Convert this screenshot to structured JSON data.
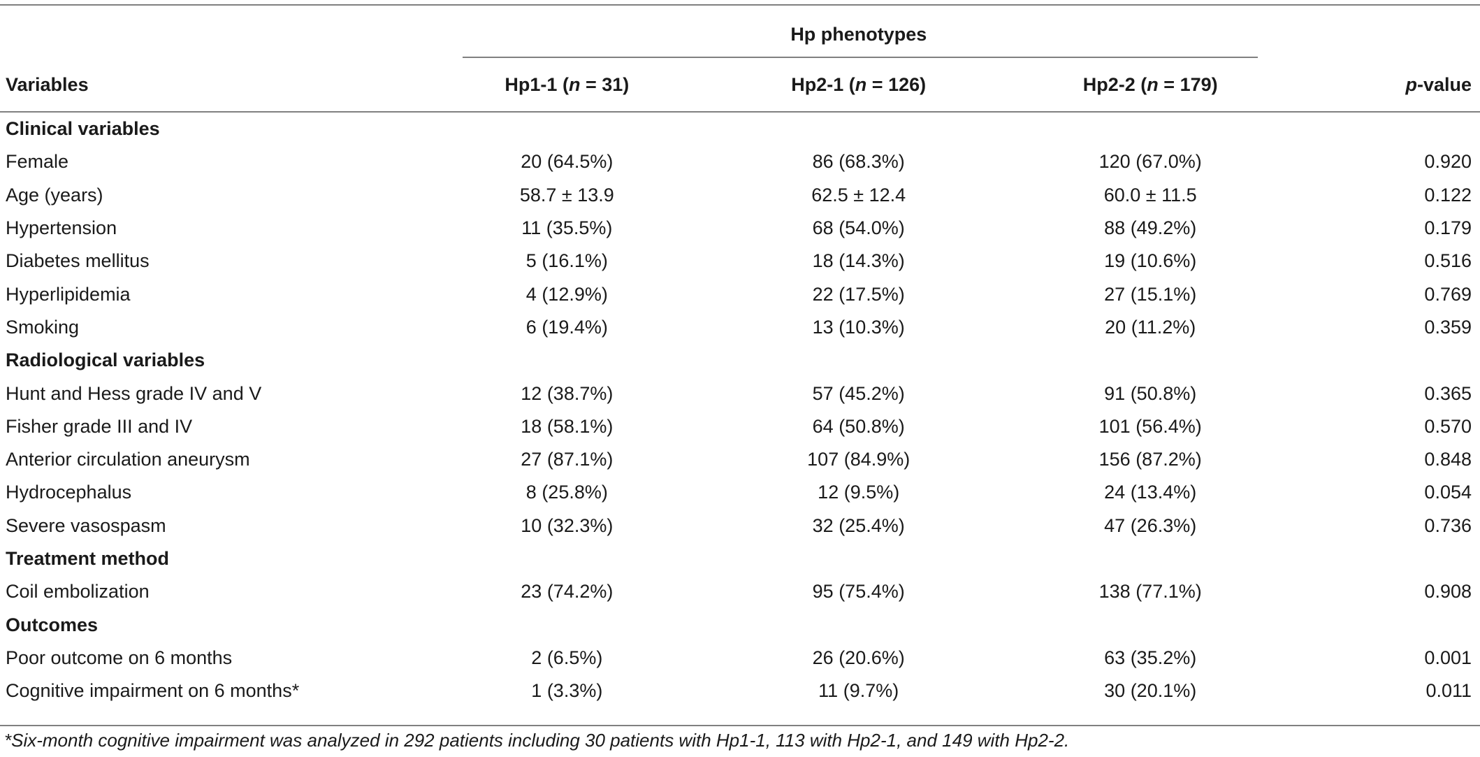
{
  "header": {
    "group_title": "Hp phenotypes",
    "variables_label": "Variables",
    "columns": [
      {
        "prefix": "Hp1-1 (",
        "n": "n",
        "suffix": " = 31)"
      },
      {
        "prefix": "Hp2-1 (",
        "n": "n",
        "suffix": " = 126)"
      },
      {
        "prefix": "Hp2-2 (",
        "n": "n",
        "suffix": " = 179)"
      }
    ],
    "pvalue_italic": "p",
    "pvalue_rest": "-value"
  },
  "rows": [
    {
      "type": "section",
      "label": "Clinical variables"
    },
    {
      "type": "data",
      "label": "Female",
      "hp11": "20 (64.5%)",
      "hp21": "86 (68.3%)",
      "hp22": "120 (67.0%)",
      "p": "0.920"
    },
    {
      "type": "data",
      "label": "Age (years)",
      "hp11": "58.7 ± 13.9",
      "hp21": "62.5 ± 12.4",
      "hp22": "60.0 ± 11.5",
      "p": "0.122"
    },
    {
      "type": "data",
      "label": "Hypertension",
      "hp11": "11 (35.5%)",
      "hp21": "68 (54.0%)",
      "hp22": "88 (49.2%)",
      "p": "0.179"
    },
    {
      "type": "data",
      "label": "Diabetes mellitus",
      "hp11": "5 (16.1%)",
      "hp21": "18 (14.3%)",
      "hp22": "19 (10.6%)",
      "p": "0.516"
    },
    {
      "type": "data",
      "label": "Hyperlipidemia",
      "hp11": "4 (12.9%)",
      "hp21": "22 (17.5%)",
      "hp22": "27 (15.1%)",
      "p": "0.769"
    },
    {
      "type": "data",
      "label": "Smoking",
      "hp11": "6 (19.4%)",
      "hp21": "13 (10.3%)",
      "hp22": "20 (11.2%)",
      "p": "0.359"
    },
    {
      "type": "section",
      "label": "Radiological variables"
    },
    {
      "type": "data",
      "label": "Hunt and Hess grade IV and V",
      "hp11": "12 (38.7%)",
      "hp21": "57 (45.2%)",
      "hp22": "91 (50.8%)",
      "p": "0.365"
    },
    {
      "type": "data",
      "label": "Fisher grade III and IV",
      "hp11": "18 (58.1%)",
      "hp21": "64 (50.8%)",
      "hp22": "101 (56.4%)",
      "p": "0.570"
    },
    {
      "type": "data",
      "label": "Anterior circulation aneurysm",
      "hp11": "27 (87.1%)",
      "hp21": "107 (84.9%)",
      "hp22": "156 (87.2%)",
      "p": "0.848"
    },
    {
      "type": "data",
      "label": "Hydrocephalus",
      "hp11": "8 (25.8%)",
      "hp21": "12 (9.5%)",
      "hp22": "24 (13.4%)",
      "p": "0.054"
    },
    {
      "type": "data",
      "label": "Severe vasospasm",
      "hp11": "10 (32.3%)",
      "hp21": "32 (25.4%)",
      "hp22": "47 (26.3%)",
      "p": "0.736"
    },
    {
      "type": "section",
      "label": "Treatment method"
    },
    {
      "type": "data",
      "label": "Coil embolization",
      "hp11": "23 (74.2%)",
      "hp21": "95 (75.4%)",
      "hp22": "138 (77.1%)",
      "p": "0.908"
    },
    {
      "type": "section",
      "label": "Outcomes"
    },
    {
      "type": "data",
      "label": "Poor outcome on 6 months",
      "hp11": "2 (6.5%)",
      "hp21": "26 (20.6%)",
      "hp22": "63 (35.2%)",
      "p": "0.001"
    },
    {
      "type": "data",
      "label": "Cognitive impairment on 6 months*",
      "hp11": "1 (3.3%)",
      "hp21": "11 (9.7%)",
      "hp22": "30 (20.1%)",
      "p": "0.011"
    }
  ],
  "footnote": "*Six-month cognitive impairment was analyzed in 292 patients including 30 patients with Hp1-1, 113 with Hp2-1, and 149 with Hp2-2."
}
